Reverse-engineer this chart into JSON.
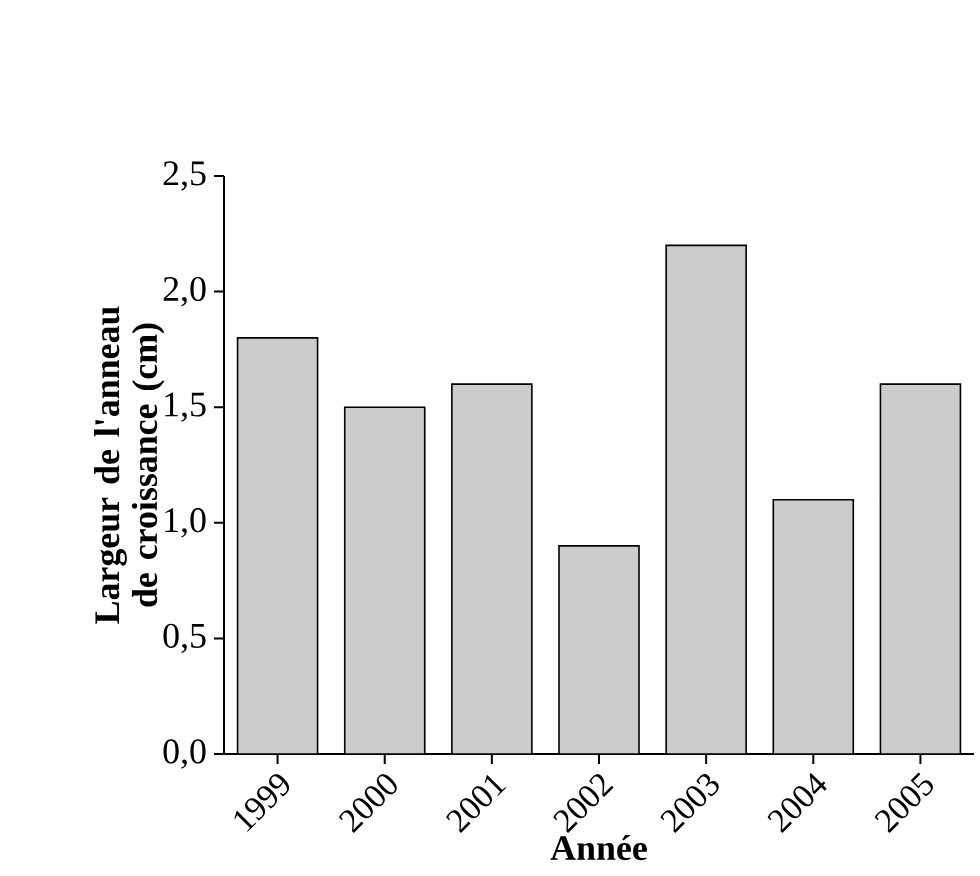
{
  "chart_data": {
    "type": "bar",
    "xlabel": "Année",
    "ylabel": "Largeur de l'anneau de croissance (cm)",
    "categories": [
      "1999",
      "2000",
      "2001",
      "2002",
      "2003",
      "2004",
      "2005"
    ],
    "values": [
      1.8,
      1.5,
      1.6,
      0.9,
      2.2,
      1.1,
      1.6
    ],
    "color": "#cccccc",
    "ylim": [
      0,
      2.5
    ],
    "yticks": [
      {
        "value": 0,
        "label": "0,0"
      },
      {
        "value": 0.5,
        "label": "0,5"
      },
      {
        "value": 1,
        "label": "1,0"
      },
      {
        "value": 1.5,
        "label": "1,5"
      },
      {
        "value": 2,
        "label": "2,0"
      },
      {
        "value": 2.5,
        "label": "2,5"
      }
    ],
    "grid": false
  }
}
